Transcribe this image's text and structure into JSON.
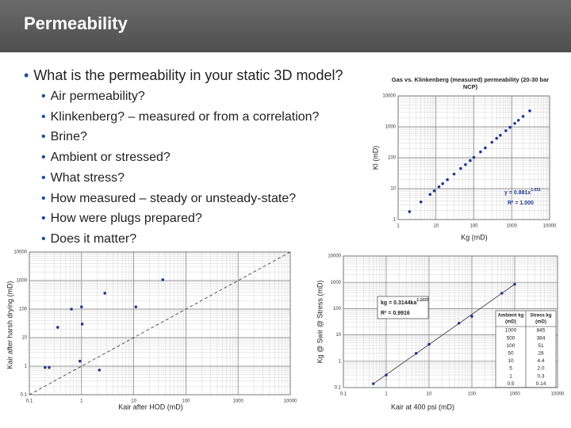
{
  "header": {
    "title": "Permeability"
  },
  "main_bullet": "What is the permeability in your static 3D model?",
  "sub_bullets": [
    "Air permeability?",
    "Klinkenberg? – measured or from a correlation?",
    "Brine?",
    "Ambient or stressed?",
    "What stress?",
    "How measured – steady or unsteady-state?",
    "How were plugs prepared?",
    "Does it matter?"
  ],
  "chart_data": [
    {
      "type": "scatter",
      "title": "Gas vs. Klinkenberg (measured) permeability (20-30 bar NCP)",
      "x_label": "Kg (mD)",
      "y_label": "Kl (mD)",
      "equation": {
        "base": "y = 0.881x",
        "exponent": "1.031"
      },
      "r_squared": "R² = 1.000",
      "log_x": true,
      "log_y": true,
      "grid": true,
      "color": "#1f3a93",
      "xlim": [
        1,
        10000
      ],
      "ylim": [
        1,
        10000
      ],
      "xticks": [
        1,
        10,
        100,
        1000,
        10000
      ],
      "yticks": [
        1,
        10,
        100,
        1000,
        10000
      ],
      "x": [
        2,
        4,
        7,
        9,
        12,
        15,
        20,
        30,
        45,
        60,
        80,
        100,
        150,
        200,
        300,
        400,
        500,
        700,
        900,
        1200,
        1500,
        2000,
        3000
      ],
      "values": [
        1.8,
        3.7,
        6.5,
        8.5,
        11.5,
        14.5,
        19.5,
        29.6,
        44.8,
        60,
        81,
        103,
        155,
        208,
        316,
        424,
        532,
        749,
        966,
        1295,
        1627,
        2180,
        3290
      ]
    },
    {
      "type": "scatter",
      "x_label": "Kair after HOD (mD)",
      "y_label": "Kair after harsh drying (mD)",
      "log_x": true,
      "log_y": true,
      "grid": true,
      "color": "#1f3a93",
      "xlim": [
        0.1,
        10000
      ],
      "ylim": [
        0.1,
        10000
      ],
      "xticks": [
        0.1,
        1,
        10,
        100,
        1000,
        10000
      ],
      "yticks": [
        0.1,
        1,
        10,
        100,
        1000,
        10000
      ],
      "x": [
        0.2,
        0.24,
        0.35,
        0.64,
        1.0,
        1.03,
        0.93,
        2.2,
        2.8,
        11,
        36
      ],
      "values": [
        0.9,
        0.9,
        23,
        100,
        120,
        30,
        1.5,
        0.73,
        360,
        120,
        1070
      ]
    },
    {
      "type": "scatter",
      "x_label": "Kair at 400 psi (mD)",
      "y_label": "Kg @ Swir @ Stress (mD)",
      "equation": {
        "base": "kg = 0.3144ka",
        "exponent": "1.1037"
      },
      "r_squared": "R² = 0.9916",
      "log_x": true,
      "log_y": true,
      "grid": true,
      "color": "#1f3a93",
      "xlim": [
        0.1,
        10000
      ],
      "ylim": [
        0.1,
        10000
      ],
      "xticks": [
        0.1,
        1,
        10,
        100,
        1000,
        10000
      ],
      "yticks": [
        0.1,
        1,
        10,
        100,
        1000,
        10000
      ],
      "table_headers": [
        [
          "Ambient kg",
          "(mD)"
        ],
        [
          "Stress kg",
          "(mD)"
        ]
      ],
      "x": [
        1000,
        500,
        100,
        50,
        10,
        5,
        1,
        0.5
      ],
      "values": [
        845,
        384,
        51,
        28,
        4.4,
        2.0,
        0.3,
        0.14
      ],
      "value_labels": [
        "845",
        "384",
        "51",
        "28",
        "4.4",
        "2.0",
        "0.3",
        "0.14"
      ]
    }
  ]
}
